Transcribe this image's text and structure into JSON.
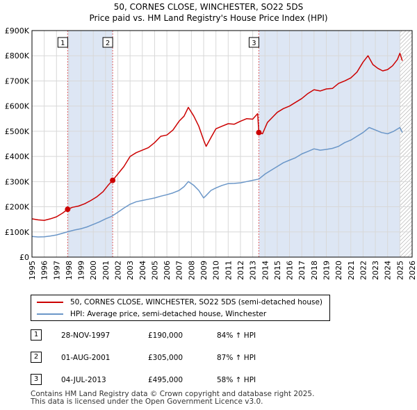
{
  "title": {
    "line1": "50, CORNES CLOSE, WINCHESTER, SO22 5DS",
    "line2": "Price paid vs. HM Land Registry's House Price Index (HPI)"
  },
  "colors": {
    "property": "#cc0000",
    "hpi": "#6a96c8",
    "shade": "#dde6f4",
    "vline": "#e06060",
    "grid": "#d8d8d8",
    "hatch": "#999999"
  },
  "chart_data": {
    "type": "line",
    "xlim": [
      1995,
      2026
    ],
    "ylim": [
      0,
      900000
    ],
    "x_ticks": [
      "1995",
      "1996",
      "1997",
      "1998",
      "1999",
      "2000",
      "2001",
      "2002",
      "2003",
      "2004",
      "2005",
      "2006",
      "2007",
      "2008",
      "2009",
      "2010",
      "2011",
      "2012",
      "2013",
      "2014",
      "2015",
      "2016",
      "2017",
      "2018",
      "2019",
      "2020",
      "2021",
      "2022",
      "2023",
      "2024",
      "2025",
      "2026"
    ],
    "y_ticks": [
      {
        "value": 0,
        "label": "£0"
      },
      {
        "value": 100000,
        "label": "£100K"
      },
      {
        "value": 200000,
        "label": "£200K"
      },
      {
        "value": 300000,
        "label": "£300K"
      },
      {
        "value": 400000,
        "label": "£400K"
      },
      {
        "value": 500000,
        "label": "£500K"
      },
      {
        "value": 600000,
        "label": "£600K"
      },
      {
        "value": 700000,
        "label": "£700K"
      },
      {
        "value": 800000,
        "label": "£800K"
      },
      {
        "value": 900000,
        "label": "£900K"
      }
    ],
    "forecast_from": 2025.0,
    "shaded_ranges": [
      [
        1997.91,
        2001.58
      ],
      [
        2013.5,
        2025.0
      ]
    ],
    "series": [
      {
        "name": "50, CORNES CLOSE, WINCHESTER, SO22 5DS (semi-detached house)",
        "x": [
          1995.0,
          1995.5,
          1996.0,
          1996.5,
          1997.0,
          1997.5,
          1997.91,
          1998.3,
          1998.8,
          1999.3,
          1999.8,
          2000.3,
          2000.8,
          2001.2,
          2001.58,
          2002.0,
          2002.5,
          2003.0,
          2003.5,
          2004.0,
          2004.5,
          2005.0,
          2005.5,
          2006.0,
          2006.5,
          2007.0,
          2007.4,
          2007.75,
          2008.2,
          2008.6,
          2009.0,
          2009.2,
          2009.6,
          2010.0,
          2010.5,
          2011.0,
          2011.5,
          2012.0,
          2012.5,
          2013.0,
          2013.4,
          2013.5,
          2013.8,
          2014.2,
          2014.6,
          2015.0,
          2015.5,
          2016.0,
          2016.5,
          2017.0,
          2017.5,
          2018.0,
          2018.5,
          2019.0,
          2019.5,
          2020.0,
          2020.5,
          2021.0,
          2021.5,
          2022.0,
          2022.4,
          2022.8,
          2023.2,
          2023.6,
          2024.0,
          2024.4,
          2024.8,
          2025.0,
          2025.2
        ],
        "values": [
          152000,
          148000,
          146000,
          152000,
          160000,
          175000,
          190000,
          198000,
          203000,
          212000,
          225000,
          240000,
          260000,
          285000,
          305000,
          330000,
          360000,
          400000,
          415000,
          425000,
          435000,
          455000,
          480000,
          485000,
          505000,
          540000,
          560000,
          595000,
          560000,
          520000,
          465000,
          440000,
          475000,
          510000,
          520000,
          530000,
          528000,
          540000,
          550000,
          548000,
          570000,
          495000,
          490000,
          535000,
          555000,
          575000,
          590000,
          600000,
          615000,
          630000,
          650000,
          665000,
          660000,
          668000,
          670000,
          690000,
          700000,
          712000,
          735000,
          775000,
          800000,
          765000,
          750000,
          740000,
          745000,
          760000,
          785000,
          810000,
          780000
        ]
      },
      {
        "name": "HPI: Average price, semi-detached house, Winchester",
        "x": [
          1995.0,
          1995.5,
          1996.0,
          1996.5,
          1997.0,
          1997.5,
          1998.0,
          1998.5,
          1999.0,
          1999.5,
          2000.0,
          2000.5,
          2001.0,
          2001.5,
          2002.0,
          2002.5,
          2003.0,
          2003.5,
          2004.0,
          2004.5,
          2005.0,
          2005.5,
          2006.0,
          2006.5,
          2007.0,
          2007.4,
          2007.75,
          2008.2,
          2008.6,
          2009.0,
          2009.2,
          2009.6,
          2010.0,
          2010.5,
          2011.0,
          2011.5,
          2012.0,
          2012.5,
          2013.0,
          2013.5,
          2014.0,
          2014.5,
          2015.0,
          2015.5,
          2016.0,
          2016.5,
          2017.0,
          2017.5,
          2018.0,
          2018.5,
          2019.0,
          2019.5,
          2020.0,
          2020.5,
          2021.0,
          2021.5,
          2022.0,
          2022.5,
          2023.0,
          2023.5,
          2024.0,
          2024.5,
          2025.0,
          2025.2
        ],
        "values": [
          82000,
          80000,
          81000,
          84000,
          88000,
          95000,
          102000,
          108000,
          113000,
          120000,
          130000,
          140000,
          152000,
          162000,
          178000,
          195000,
          210000,
          220000,
          225000,
          230000,
          235000,
          242000,
          248000,
          255000,
          265000,
          280000,
          300000,
          285000,
          265000,
          235000,
          245000,
          265000,
          275000,
          285000,
          292000,
          293000,
          295000,
          300000,
          305000,
          310000,
          330000,
          345000,
          360000,
          375000,
          385000,
          395000,
          410000,
          420000,
          430000,
          425000,
          428000,
          432000,
          440000,
          455000,
          465000,
          480000,
          495000,
          515000,
          505000,
          495000,
          490000,
          500000,
          515000,
          495000
        ]
      }
    ],
    "transactions": [
      {
        "num": "1",
        "x": 1997.91,
        "price": 190000,
        "date": "28-NOV-1997",
        "price_label": "£190,000",
        "hpi": "84% ↑ HPI"
      },
      {
        "num": "2",
        "x": 2001.58,
        "price": 305000,
        "date": "01-AUG-2001",
        "price_label": "£305,000",
        "hpi": "87% ↑ HPI"
      },
      {
        "num": "3",
        "x": 2013.5,
        "price": 495000,
        "date": "04-JUL-2013",
        "price_label": "£495,000",
        "hpi": "58% ↑ HPI"
      }
    ]
  },
  "legend": {
    "property_label": "50, CORNES CLOSE, WINCHESTER, SO22 5DS (semi-detached house)",
    "hpi_label": "HPI: Average price, semi-detached house, Winchester"
  },
  "footer": {
    "line1": "Contains HM Land Registry data © Crown copyright and database right 2025.",
    "line2": "This data is licensed under the Open Government Licence v3.0."
  }
}
